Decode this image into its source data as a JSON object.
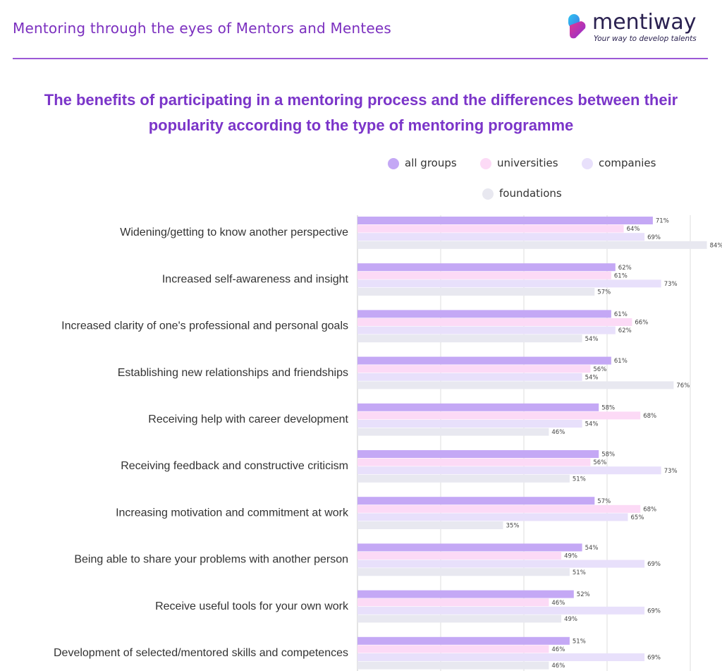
{
  "header": {
    "title": "Mentoring through the eyes of Mentors and Mentees",
    "logo_name": "mentiway",
    "logo_tagline": "Your way to develop talents"
  },
  "chart_data": {
    "type": "bar",
    "orientation": "horizontal",
    "title": "The benefits of participating in a mentoring process and the differences between their popularity according to the type of mentoring programme",
    "title_line1": "The benefits of participating in a mentoring process and the differences between their",
    "title_line2": "popularity according to the type of mentoring programme",
    "value_suffix": "%",
    "xlim": [
      0,
      100
    ],
    "grid": true,
    "legend_position": "top",
    "categories": [
      "Widening/getting to know another perspective",
      "Increased self-awareness and insight",
      "Increased clarity of one's professional and personal goals",
      "Establishing new relationships and friendships",
      "Receiving help with career development",
      "Receiving feedback and constructive criticism",
      "Increasing motivation and commitment at work",
      "Being able to share your problems with another person",
      "Receive useful tools for your own work",
      "Development of selected/mentored skills and competences"
    ],
    "series": [
      {
        "name": "all groups",
        "color": "#c4a8f5",
        "values": [
          71,
          62,
          61,
          61,
          58,
          58,
          57,
          54,
          52,
          51
        ]
      },
      {
        "name": "universities",
        "color": "#fcdaf6",
        "values": [
          64,
          61,
          66,
          56,
          68,
          56,
          68,
          49,
          46,
          46
        ]
      },
      {
        "name": "companies",
        "color": "#e8e0fb",
        "values": [
          69,
          73,
          62,
          54,
          54,
          73,
          65,
          69,
          69,
          69
        ]
      },
      {
        "name": "foundations",
        "color": "#e8e8f0",
        "values": [
          84,
          57,
          54,
          76,
          46,
          51,
          35,
          51,
          49,
          46
        ]
      }
    ]
  }
}
